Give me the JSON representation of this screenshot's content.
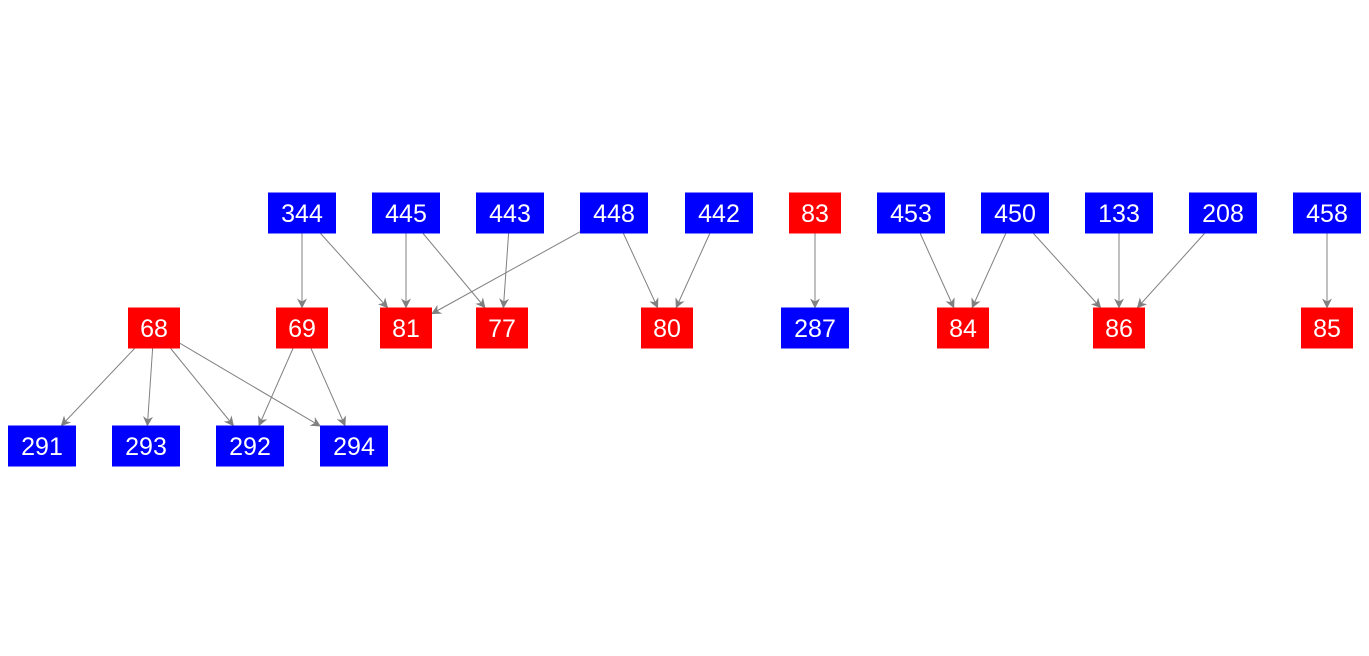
{
  "colors": {
    "blue": "#0000ff",
    "red": "#ff0000",
    "edge": "#808080",
    "text": "#ffffff"
  },
  "nodes": [
    {
      "id": "344",
      "label": "344",
      "color": "blue"
    },
    {
      "id": "445",
      "label": "445",
      "color": "blue"
    },
    {
      "id": "443",
      "label": "443",
      "color": "blue"
    },
    {
      "id": "448",
      "label": "448",
      "color": "blue"
    },
    {
      "id": "442",
      "label": "442",
      "color": "blue"
    },
    {
      "id": "83",
      "label": "83",
      "color": "red"
    },
    {
      "id": "453",
      "label": "453",
      "color": "blue"
    },
    {
      "id": "450",
      "label": "450",
      "color": "blue"
    },
    {
      "id": "133",
      "label": "133",
      "color": "blue"
    },
    {
      "id": "208",
      "label": "208",
      "color": "blue"
    },
    {
      "id": "458",
      "label": "458",
      "color": "blue"
    },
    {
      "id": "68",
      "label": "68",
      "color": "red"
    },
    {
      "id": "69",
      "label": "69",
      "color": "red"
    },
    {
      "id": "81",
      "label": "81",
      "color": "red"
    },
    {
      "id": "77",
      "label": "77",
      "color": "red"
    },
    {
      "id": "80",
      "label": "80",
      "color": "red"
    },
    {
      "id": "287",
      "label": "287",
      "color": "blue"
    },
    {
      "id": "84",
      "label": "84",
      "color": "red"
    },
    {
      "id": "86",
      "label": "86",
      "color": "red"
    },
    {
      "id": "85",
      "label": "85",
      "color": "red"
    },
    {
      "id": "291",
      "label": "291",
      "color": "blue"
    },
    {
      "id": "293",
      "label": "293",
      "color": "blue"
    },
    {
      "id": "292",
      "label": "292",
      "color": "blue"
    },
    {
      "id": "294",
      "label": "294",
      "color": "blue"
    }
  ],
  "edges": [
    [
      "344",
      "69"
    ],
    [
      "344",
      "81"
    ],
    [
      "445",
      "81"
    ],
    [
      "445",
      "77"
    ],
    [
      "443",
      "77"
    ],
    [
      "448",
      "81"
    ],
    [
      "448",
      "80"
    ],
    [
      "442",
      "80"
    ],
    [
      "83",
      "287"
    ],
    [
      "453",
      "84"
    ],
    [
      "450",
      "84"
    ],
    [
      "450",
      "86"
    ],
    [
      "133",
      "86"
    ],
    [
      "208",
      "86"
    ],
    [
      "458",
      "85"
    ],
    [
      "68",
      "291"
    ],
    [
      "68",
      "293"
    ],
    [
      "68",
      "292"
    ],
    [
      "68",
      "294"
    ],
    [
      "69",
      "292"
    ],
    [
      "69",
      "294"
    ]
  ]
}
